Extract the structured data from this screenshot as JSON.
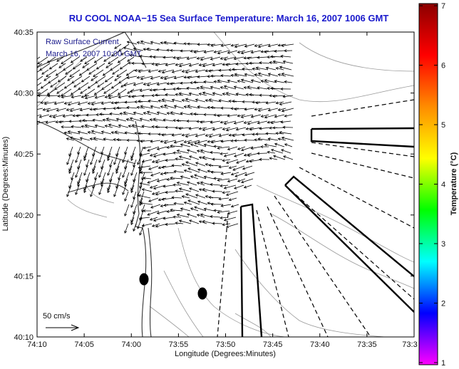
{
  "title": "RU COOL  NOAA−15  Sea Surface Temperature:  March 16, 2007 1006 GMT",
  "annotations": {
    "line1": "Raw Surface Current",
    "line2": "March 16, 2007 10:00 GMT"
  },
  "scale_label": "50 cm/s",
  "axes": {
    "xlabel": "Longitude (Degrees:Minutes)",
    "ylabel": "Latitude (Degrees:Minutes)",
    "xticks": [
      "74:10",
      "74:05",
      "74:00",
      "73:55",
      "73:50",
      "73:45",
      "73:40",
      "73:35",
      "73:3"
    ],
    "yticks": [
      "40:35",
      "40:30",
      "40:25",
      "40:20",
      "40:15",
      "40:10"
    ]
  },
  "colorbar": {
    "label": "Temperature (°C)",
    "ticks": [
      "7",
      "6",
      "5",
      "4",
      "3",
      "2",
      "1"
    ],
    "colors": [
      "#8b0000",
      "#ff0000",
      "#ff8c00",
      "#ffff00",
      "#00ff00",
      "#00ffff",
      "#0000ff",
      "#ff00ff"
    ]
  },
  "map_colors": {
    "frame": "#000000",
    "contour": "#888888",
    "coast": "#222222",
    "vector": "#000000",
    "title": "#1a1acc",
    "annotation": "#1a1a8c"
  }
}
